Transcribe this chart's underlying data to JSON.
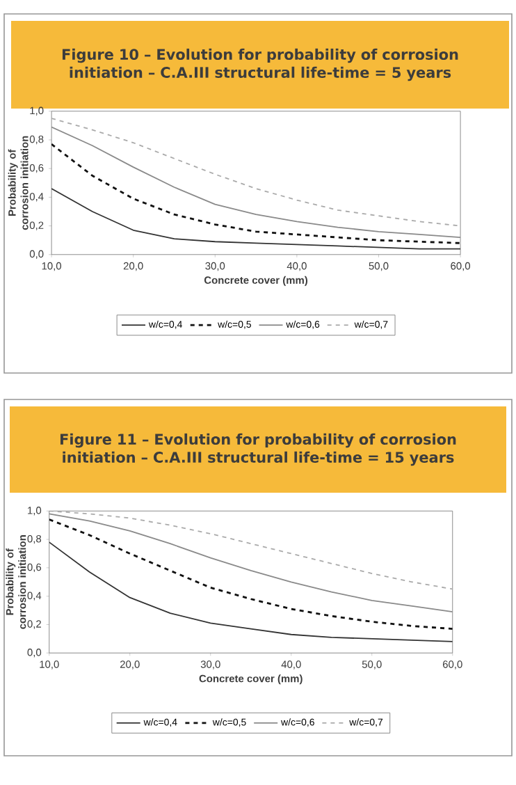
{
  "chart_data": [
    {
      "type": "line",
      "title": "Figure 10 – Evolution for probability of corrosion initiation – C.A.III structural life-time = 5 years",
      "xlabel": "Concrete cover (mm)",
      "ylabel": "Probability of corrosion initiation",
      "x": [
        10,
        15,
        20,
        25,
        30,
        35,
        40,
        45,
        50,
        55,
        60
      ],
      "xlim": [
        10,
        60
      ],
      "xticks": [
        {
          "value": 10,
          "label": "10,0"
        },
        {
          "value": 20,
          "label": "20,0"
        },
        {
          "value": 30,
          "label": "30,0"
        },
        {
          "value": 40,
          "label": "40,0"
        },
        {
          "value": 50,
          "label": "50,0"
        },
        {
          "value": 60,
          "label": "60,0"
        }
      ],
      "ylim": [
        0,
        1
      ],
      "yticks": [
        {
          "value": 0,
          "label": "0,0"
        },
        {
          "value": 0.2,
          "label": "0,2"
        },
        {
          "value": 0.4,
          "label": "0,4"
        },
        {
          "value": 0.6,
          "label": "0,6"
        },
        {
          "value": 0.8,
          "label": "0,8"
        },
        {
          "value": 1,
          "label": "1,0"
        }
      ],
      "legend": "bottom",
      "marker": "none",
      "series": [
        {
          "name": "w/c=0,4",
          "color": "#333333",
          "line_style": "solid",
          "values": [
            0.46,
            0.3,
            0.17,
            0.11,
            0.09,
            0.08,
            0.07,
            0.06,
            0.05,
            0.04,
            0.04
          ]
        },
        {
          "name": "w/c=0,5",
          "color": "#111111",
          "line_style": "dashed",
          "values": [
            0.77,
            0.55,
            0.39,
            0.28,
            0.21,
            0.16,
            0.14,
            0.12,
            0.1,
            0.09,
            0.08
          ]
        },
        {
          "name": "w/c=0,6",
          "color": "#8a8a8a",
          "line_style": "solid",
          "values": [
            0.89,
            0.76,
            0.61,
            0.47,
            0.35,
            0.28,
            0.23,
            0.19,
            0.16,
            0.14,
            0.12
          ]
        },
        {
          "name": "w/c=0,7",
          "color": "#aaaaaa",
          "line_style": "dashed",
          "values": [
            0.95,
            0.87,
            0.78,
            0.67,
            0.56,
            0.46,
            0.38,
            0.31,
            0.27,
            0.23,
            0.2
          ]
        }
      ]
    },
    {
      "type": "line",
      "title": "Figure 11 – Evolution for probability of corrosion initiation – C.A.III structural life-time = 15 years",
      "xlabel": "Concrete cover (mm)",
      "ylabel": "Probability of corrosion initiation",
      "x": [
        10,
        15,
        20,
        25,
        30,
        35,
        40,
        45,
        50,
        55,
        60
      ],
      "xlim": [
        10,
        60
      ],
      "xticks": [
        {
          "value": 10,
          "label": "10,0"
        },
        {
          "value": 20,
          "label": "20,0"
        },
        {
          "value": 30,
          "label": "30,0"
        },
        {
          "value": 40,
          "label": "40,0"
        },
        {
          "value": 50,
          "label": "50,0"
        },
        {
          "value": 60,
          "label": "60,0"
        }
      ],
      "ylim": [
        0,
        1
      ],
      "yticks": [
        {
          "value": 0,
          "label": "0,0"
        },
        {
          "value": 0.2,
          "label": "0,2"
        },
        {
          "value": 0.4,
          "label": "0,4"
        },
        {
          "value": 0.6,
          "label": "0,6"
        },
        {
          "value": 0.8,
          "label": "0,8"
        },
        {
          "value": 1,
          "label": "1,0"
        }
      ],
      "legend": "bottom",
      "marker": "none",
      "series": [
        {
          "name": "w/c=0,4",
          "color": "#333333",
          "line_style": "solid",
          "values": [
            0.78,
            0.57,
            0.39,
            0.28,
            0.21,
            0.17,
            0.13,
            0.11,
            0.1,
            0.09,
            0.08
          ]
        },
        {
          "name": "w/c=0,5",
          "color": "#111111",
          "line_style": "dashed",
          "values": [
            0.94,
            0.83,
            0.7,
            0.58,
            0.46,
            0.38,
            0.31,
            0.26,
            0.22,
            0.19,
            0.17
          ]
        },
        {
          "name": "w/c=0,6",
          "color": "#8a8a8a",
          "line_style": "solid",
          "values": [
            0.98,
            0.93,
            0.86,
            0.77,
            0.67,
            0.58,
            0.5,
            0.43,
            0.37,
            0.33,
            0.29
          ]
        },
        {
          "name": "w/c=0,7",
          "color": "#aaaaaa",
          "line_style": "dashed",
          "values": [
            1.0,
            0.98,
            0.95,
            0.9,
            0.84,
            0.77,
            0.7,
            0.63,
            0.56,
            0.5,
            0.45
          ]
        }
      ]
    }
  ]
}
